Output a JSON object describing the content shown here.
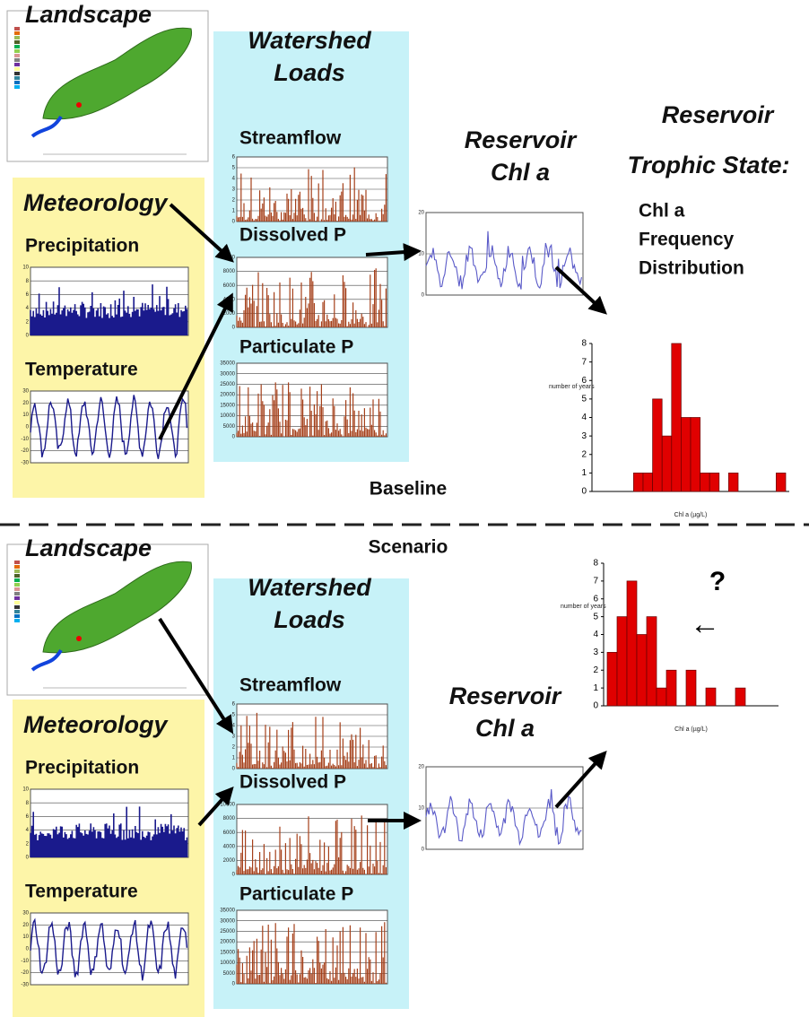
{
  "baseline": {
    "landscape": "Landscape",
    "meteorology": "Meteorology",
    "precipitation": {
      "label": "Precipitation",
      "yticks": [
        0,
        2,
        4,
        6,
        8,
        10
      ]
    },
    "temperature": {
      "label": "Temperature",
      "yticks": [
        -30,
        -20,
        -10,
        0,
        10,
        20,
        30
      ]
    },
    "watershed_loads": [
      "Watershed",
      "Loads"
    ],
    "streamflow": {
      "label": "Streamflow",
      "yticks": [
        0,
        1,
        2,
        3,
        4,
        5,
        6
      ]
    },
    "dissolved_p": {
      "label": "Dissolved P",
      "yticks": [
        0,
        2000,
        4000,
        6000,
        8000,
        10000
      ]
    },
    "particulate_p": {
      "label": "Particulate P",
      "yticks": [
        0,
        5000,
        10000,
        15000,
        20000,
        25000,
        30000,
        35000
      ]
    },
    "reservoir_chl": {
      "label": [
        "Reservoir",
        "Chl a"
      ],
      "yticks": [
        0,
        10,
        20
      ]
    },
    "trophic_state": [
      "Reservoir",
      "Trophic State:"
    ],
    "distribution_label": [
      "Chl a",
      "Frequency",
      "Distribution"
    ],
    "histogram": {
      "y_label": "number of years",
      "x_label": "Chl a (µg/L)",
      "yticks": [
        0,
        1,
        2,
        3,
        4,
        5,
        6,
        7,
        8
      ],
      "values": [
        0,
        0,
        0,
        0,
        1,
        1,
        5,
        3,
        8,
        4,
        4,
        1,
        1,
        0,
        1,
        0,
        0,
        0,
        0,
        1
      ]
    },
    "caption": "Baseline"
  },
  "scenario": {
    "landscape": "Landscape",
    "meteorology": "Meteorology",
    "precipitation": {
      "label": "Precipitation",
      "yticks": [
        0,
        2,
        4,
        6,
        8,
        10
      ]
    },
    "temperature": {
      "label": "Temperature",
      "yticks": [
        -30,
        -20,
        -10,
        0,
        10,
        20,
        30
      ]
    },
    "watershed_loads": [
      "Watershed",
      "Loads"
    ],
    "streamflow": {
      "label": "Streamflow",
      "yticks": [
        0,
        1,
        2,
        3,
        4,
        5,
        6
      ]
    },
    "dissolved_p": {
      "label": "Dissolved P",
      "yticks": [
        0,
        2000,
        4000,
        6000,
        8000,
        10000
      ]
    },
    "particulate_p": {
      "label": "Particulate P",
      "yticks": [
        0,
        5000,
        10000,
        15000,
        20000,
        25000,
        30000,
        35000
      ]
    },
    "reservoir_chl": {
      "label": [
        "Reservoir",
        "Chl a"
      ],
      "yticks": [
        0,
        10,
        20
      ]
    },
    "histogram": {
      "y_label": "number of years",
      "x_label": "Chl a (µg/L)",
      "yticks": [
        0,
        1,
        2,
        3,
        4,
        5,
        6,
        7,
        8
      ],
      "values": [
        3,
        5,
        7,
        4,
        5,
        1,
        2,
        0,
        2,
        0,
        1,
        0,
        0,
        1,
        0,
        0,
        0,
        0
      ]
    },
    "caption": "Scenario",
    "question": "?",
    "arrow": "←"
  }
}
